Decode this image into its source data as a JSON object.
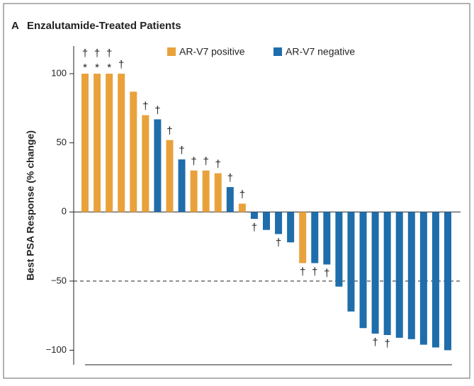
{
  "chart_data": {
    "type": "waterfall",
    "panel_label": "A",
    "title": "Enzalutamide-Treated Patients",
    "ylabel": "Best PSA Response (% change)",
    "ylim": [
      -110,
      120
    ],
    "yticks": [
      100,
      50,
      0,
      {
        "value": -50,
        "label": "−50"
      },
      {
        "value": -100,
        "label": "−100"
      }
    ],
    "reference_line": -50,
    "series": [
      {
        "name": "AR-V7 positive",
        "color": "#e9a23b",
        "values": [
          100,
          100,
          100,
          100,
          87,
          70,
          null,
          52,
          null,
          30,
          30,
          28,
          null,
          6,
          null,
          null,
          null,
          null,
          -37,
          null,
          null,
          null,
          null,
          null,
          null,
          null,
          null,
          null,
          null,
          null,
          null
        ]
      },
      {
        "name": "AR-V7 negative",
        "color": "#1f6dab",
        "values": [
          null,
          null,
          null,
          null,
          null,
          null,
          67,
          null,
          38,
          null,
          null,
          null,
          18,
          null,
          -5,
          -13,
          -16,
          -22,
          null,
          -37,
          -38,
          -54,
          -72,
          -84,
          -88,
          -89,
          -91,
          -92,
          -96,
          -98,
          -100
        ]
      }
    ],
    "daggers": [
      "†",
      "†",
      "†",
      "†",
      null,
      "†",
      "†",
      "†",
      "†",
      "†",
      "†",
      "†",
      "†",
      "†",
      "†",
      null,
      "†",
      null,
      "†",
      "†",
      "†",
      null,
      null,
      null,
      "†",
      "†",
      null,
      null,
      null,
      null,
      null
    ],
    "asterisks": [
      "*",
      "*",
      "*",
      null,
      null,
      null,
      null,
      null,
      null,
      null,
      null,
      null,
      null,
      null,
      null,
      null,
      null,
      null,
      null,
      null,
      null,
      null,
      null,
      null,
      null,
      null,
      null,
      null,
      null,
      null,
      null
    ]
  }
}
